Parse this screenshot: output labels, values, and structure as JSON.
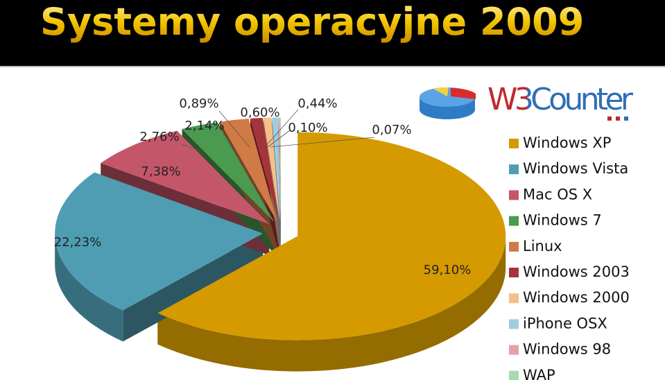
{
  "chart_data": {
    "type": "pie",
    "title": "Systemy operacyjne 2009",
    "logo": "W3Counter",
    "categories": [
      "Windows XP",
      "Windows Vista",
      "Mac OS X",
      "Windows 7",
      "Linux",
      "Windows 2003",
      "Windows 2000",
      "iPhone OSX",
      "Windows 98",
      "WAP"
    ],
    "values": [
      59.1,
      22.23,
      7.38,
      2.76,
      2.14,
      0.89,
      0.6,
      0.44,
      0.1,
      0.07
    ],
    "value_labels": [
      "59,10%",
      "22,23%",
      "7,38%",
      "2,76%",
      "2,14%",
      "0,89%",
      "0,60%",
      "0,44%",
      "0,10%",
      "0,07%"
    ],
    "colors": [
      "#d49a00",
      "#4f9db3",
      "#c4566a",
      "#4a9a4f",
      "#d07a45",
      "#a8323a",
      "#f4c08a",
      "#9fcde0",
      "#e8a0a8",
      "#a8d8b0"
    ],
    "legend": "right"
  }
}
